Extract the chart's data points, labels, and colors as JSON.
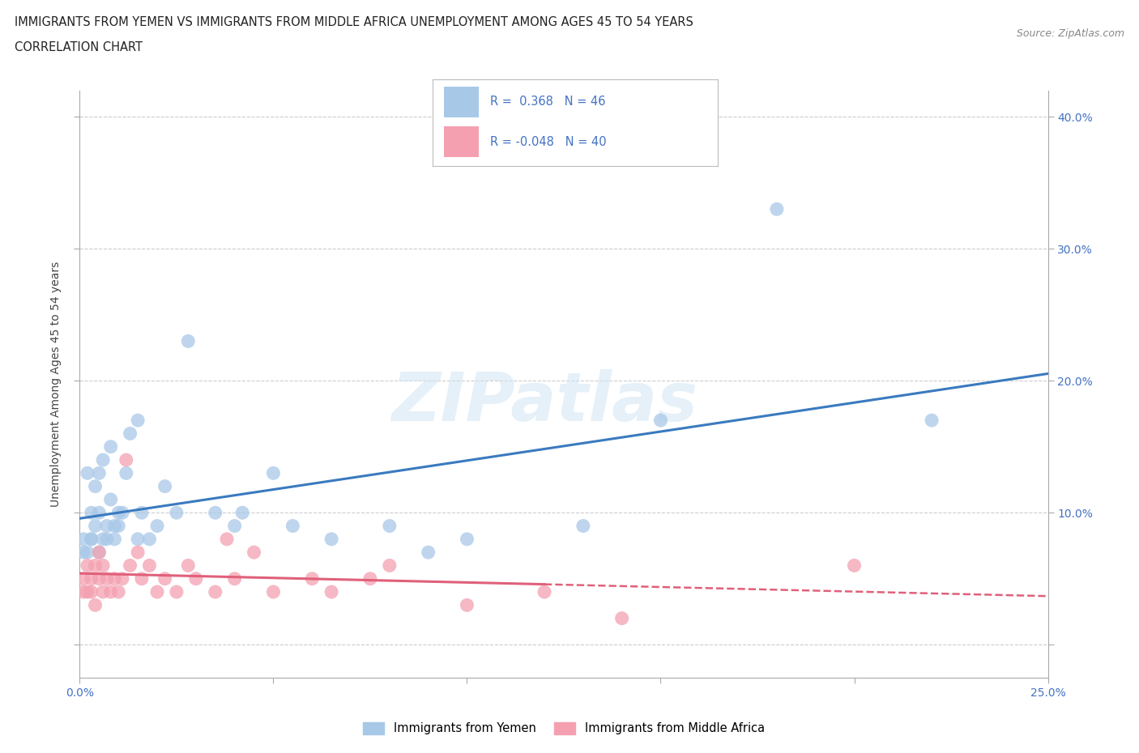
{
  "title_line1": "IMMIGRANTS FROM YEMEN VS IMMIGRANTS FROM MIDDLE AFRICA UNEMPLOYMENT AMONG AGES 45 TO 54 YEARS",
  "title_line2": "CORRELATION CHART",
  "source_text": "Source: ZipAtlas.com",
  "ylabel": "Unemployment Among Ages 45 to 54 years",
  "xlim": [
    0,
    0.25
  ],
  "ylim": [
    -0.025,
    0.42
  ],
  "watermark": "ZIPatlas",
  "blue_color": "#a8c8e8",
  "pink_color": "#f4a0b0",
  "blue_line_color": "#3a7abf",
  "pink_line_color": "#e0607a",
  "legend1_label": "Immigrants from Yemen",
  "legend2_label": "Immigrants from Middle Africa",
  "background_color": "#ffffff",
  "grid_color": "#cccccc",
  "blue_x": [
    0.001,
    0.001,
    0.002,
    0.002,
    0.003,
    0.003,
    0.003,
    0.004,
    0.004,
    0.005,
    0.005,
    0.005,
    0.006,
    0.006,
    0.007,
    0.007,
    0.008,
    0.008,
    0.009,
    0.009,
    0.01,
    0.01,
    0.011,
    0.012,
    0.013,
    0.015,
    0.015,
    0.016,
    0.018,
    0.02,
    0.022,
    0.025,
    0.028,
    0.035,
    0.04,
    0.042,
    0.05,
    0.055,
    0.065,
    0.08,
    0.09,
    0.1,
    0.13,
    0.15,
    0.18,
    0.22
  ],
  "blue_y": [
    0.07,
    0.08,
    0.07,
    0.13,
    0.08,
    0.1,
    0.08,
    0.12,
    0.09,
    0.07,
    0.1,
    0.13,
    0.08,
    0.14,
    0.09,
    0.08,
    0.11,
    0.15,
    0.09,
    0.08,
    0.1,
    0.09,
    0.1,
    0.13,
    0.16,
    0.08,
    0.17,
    0.1,
    0.08,
    0.09,
    0.12,
    0.1,
    0.23,
    0.1,
    0.09,
    0.1,
    0.13,
    0.09,
    0.08,
    0.09,
    0.07,
    0.08,
    0.09,
    0.17,
    0.33,
    0.17
  ],
  "pink_x": [
    0.001,
    0.001,
    0.002,
    0.002,
    0.003,
    0.003,
    0.004,
    0.004,
    0.005,
    0.005,
    0.006,
    0.006,
    0.007,
    0.008,
    0.009,
    0.01,
    0.011,
    0.012,
    0.013,
    0.015,
    0.016,
    0.018,
    0.02,
    0.022,
    0.025,
    0.028,
    0.03,
    0.035,
    0.038,
    0.04,
    0.045,
    0.05,
    0.06,
    0.065,
    0.075,
    0.08,
    0.1,
    0.12,
    0.14,
    0.2
  ],
  "pink_y": [
    0.04,
    0.05,
    0.04,
    0.06,
    0.04,
    0.05,
    0.06,
    0.03,
    0.05,
    0.07,
    0.04,
    0.06,
    0.05,
    0.04,
    0.05,
    0.04,
    0.05,
    0.14,
    0.06,
    0.07,
    0.05,
    0.06,
    0.04,
    0.05,
    0.04,
    0.06,
    0.05,
    0.04,
    0.08,
    0.05,
    0.07,
    0.04,
    0.05,
    0.04,
    0.05,
    0.06,
    0.03,
    0.04,
    0.02,
    0.06
  ]
}
